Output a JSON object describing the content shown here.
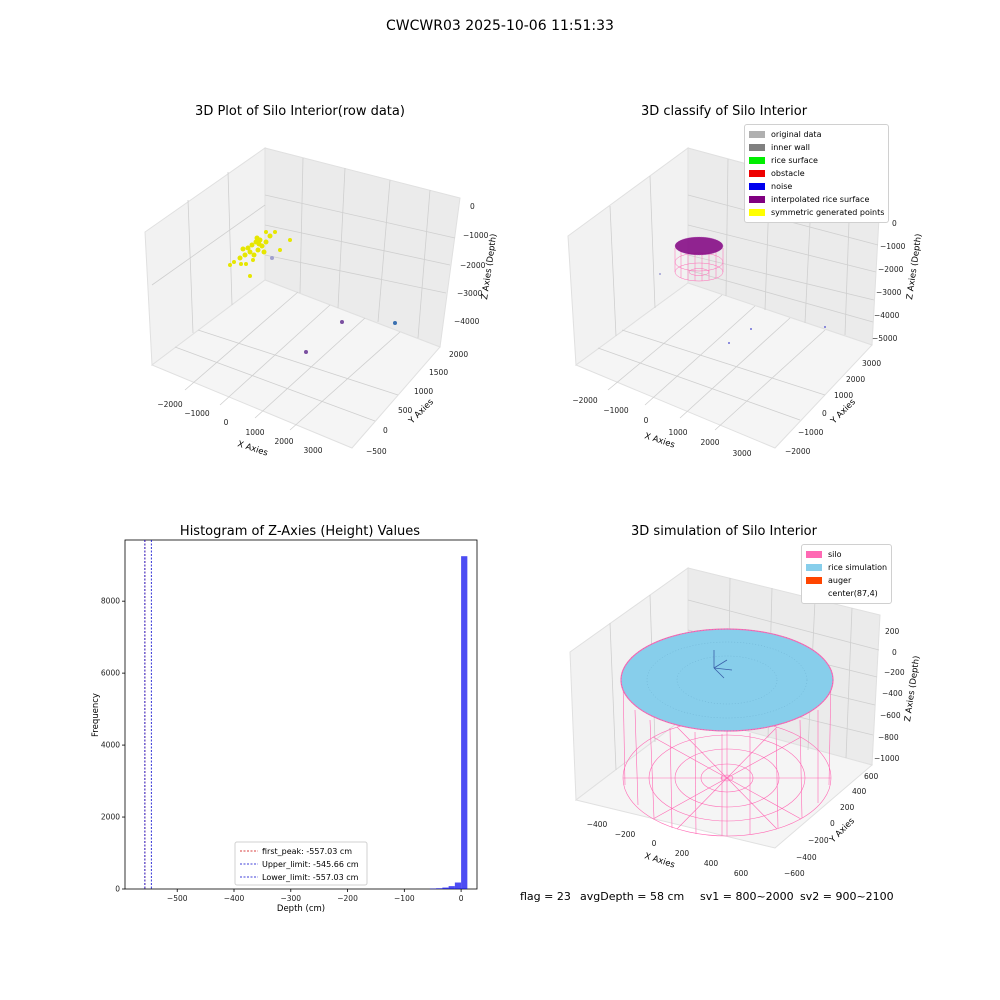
{
  "suptitle": "CWCWR03 2025-10-06 11:51:33",
  "panels": {
    "raw": {
      "title": "3D Plot of Silo Interior(row data)",
      "xlabel": "X Axies",
      "ylabel": "Y Axies",
      "zlabel": "Z Axies (Depth)",
      "xticks": [
        "−2000",
        "−1000",
        "0",
        "1000",
        "2000",
        "3000"
      ],
      "yticks": [
        "−500",
        "0",
        "500",
        "1000",
        "1500",
        "2000"
      ],
      "zticks": [
        "0",
        "−1000",
        "−2000",
        "−3000",
        "−4000"
      ]
    },
    "classify": {
      "title": "3D classify of Silo Interior",
      "xlabel": "X Axies",
      "ylabel": "Y Axies",
      "zlabel": "Z Axies (Depth)",
      "xticks": [
        "−2000",
        "−1000",
        "0",
        "1000",
        "2000",
        "3000"
      ],
      "yticks": [
        "−2000",
        "−1000",
        "0",
        "1000",
        "2000",
        "3000"
      ],
      "zticks": [
        "0",
        "−1000",
        "−2000",
        "−3000",
        "−4000",
        "−5000"
      ],
      "legend": [
        {
          "label": "original data",
          "color": "#b0b0b0"
        },
        {
          "label": "inner wall",
          "color": "#808080"
        },
        {
          "label": "rice surface",
          "color": "#00ee00"
        },
        {
          "label": "obstacle",
          "color": "#ee0000"
        },
        {
          "label": "noise",
          "color": "#0000ee"
        },
        {
          "label": "interpolated rice surface",
          "color": "#800080"
        },
        {
          "label": "symmetric generated points",
          "color": "#ffff00"
        }
      ]
    },
    "simulation": {
      "title": "3D simulation of Silo Interior",
      "xlabel": "X Axies",
      "ylabel": "Y Axies",
      "zlabel": "Z Axies (Depth)",
      "xticks": [
        "−400",
        "−200",
        "0",
        "200",
        "400",
        "600"
      ],
      "yticks": [
        "−600",
        "−400",
        "−200",
        "0",
        "200",
        "400",
        "600"
      ],
      "zticks": [
        "200",
        "0",
        "−200",
        "−400",
        "−600",
        "−800",
        "−1000"
      ],
      "legend": [
        {
          "label": "silo",
          "color": "#ff69b4"
        },
        {
          "label": "rice simulation",
          "color": "#87ceeb"
        },
        {
          "label": "auger",
          "color": "#ff4500"
        },
        {
          "label": "center(87,4)",
          "color": "#ffffff"
        }
      ]
    }
  },
  "chart_data": {
    "type": "bar",
    "title": "Histogram of Z-Axies (Height) Values",
    "xlabel": "Depth (cm)",
    "ylabel": "Frequency",
    "xlim": [
      -592,
      28
    ],
    "ylim": [
      0,
      9700
    ],
    "xticks": [
      -500,
      -400,
      -300,
      -200,
      -100,
      0
    ],
    "yticks": [
      0,
      2000,
      4000,
      6000,
      8000
    ],
    "bins": [
      {
        "x0": -55,
        "x1": -44,
        "count": 10
      },
      {
        "x0": -44,
        "x1": -33,
        "count": 20
      },
      {
        "x0": -33,
        "x1": -22,
        "count": 40
      },
      {
        "x0": -22,
        "x1": -11,
        "count": 80
      },
      {
        "x0": -11,
        "x1": 0,
        "count": 180
      },
      {
        "x0": 0,
        "x1": 11,
        "count": 9250
      }
    ],
    "bar_color": "#0000ee",
    "lines": [
      {
        "label": "first_peak: -557.03 cm",
        "value": -557.03,
        "color": "#cc0000"
      },
      {
        "label": "Upper_limit: -545.66 cm",
        "value": -545.66,
        "color": "#0000cc"
      },
      {
        "label": "Lower_limit: -557.03 cm",
        "value": -557.03,
        "color": "#0000cc"
      }
    ],
    "legend_position": "lower-center"
  },
  "info": {
    "flag": "flag = 23",
    "avg_depth": "avgDepth = 58 cm",
    "sv1": "sv1 = 800~2000",
    "sv2": "sv2 = 900~2100"
  }
}
